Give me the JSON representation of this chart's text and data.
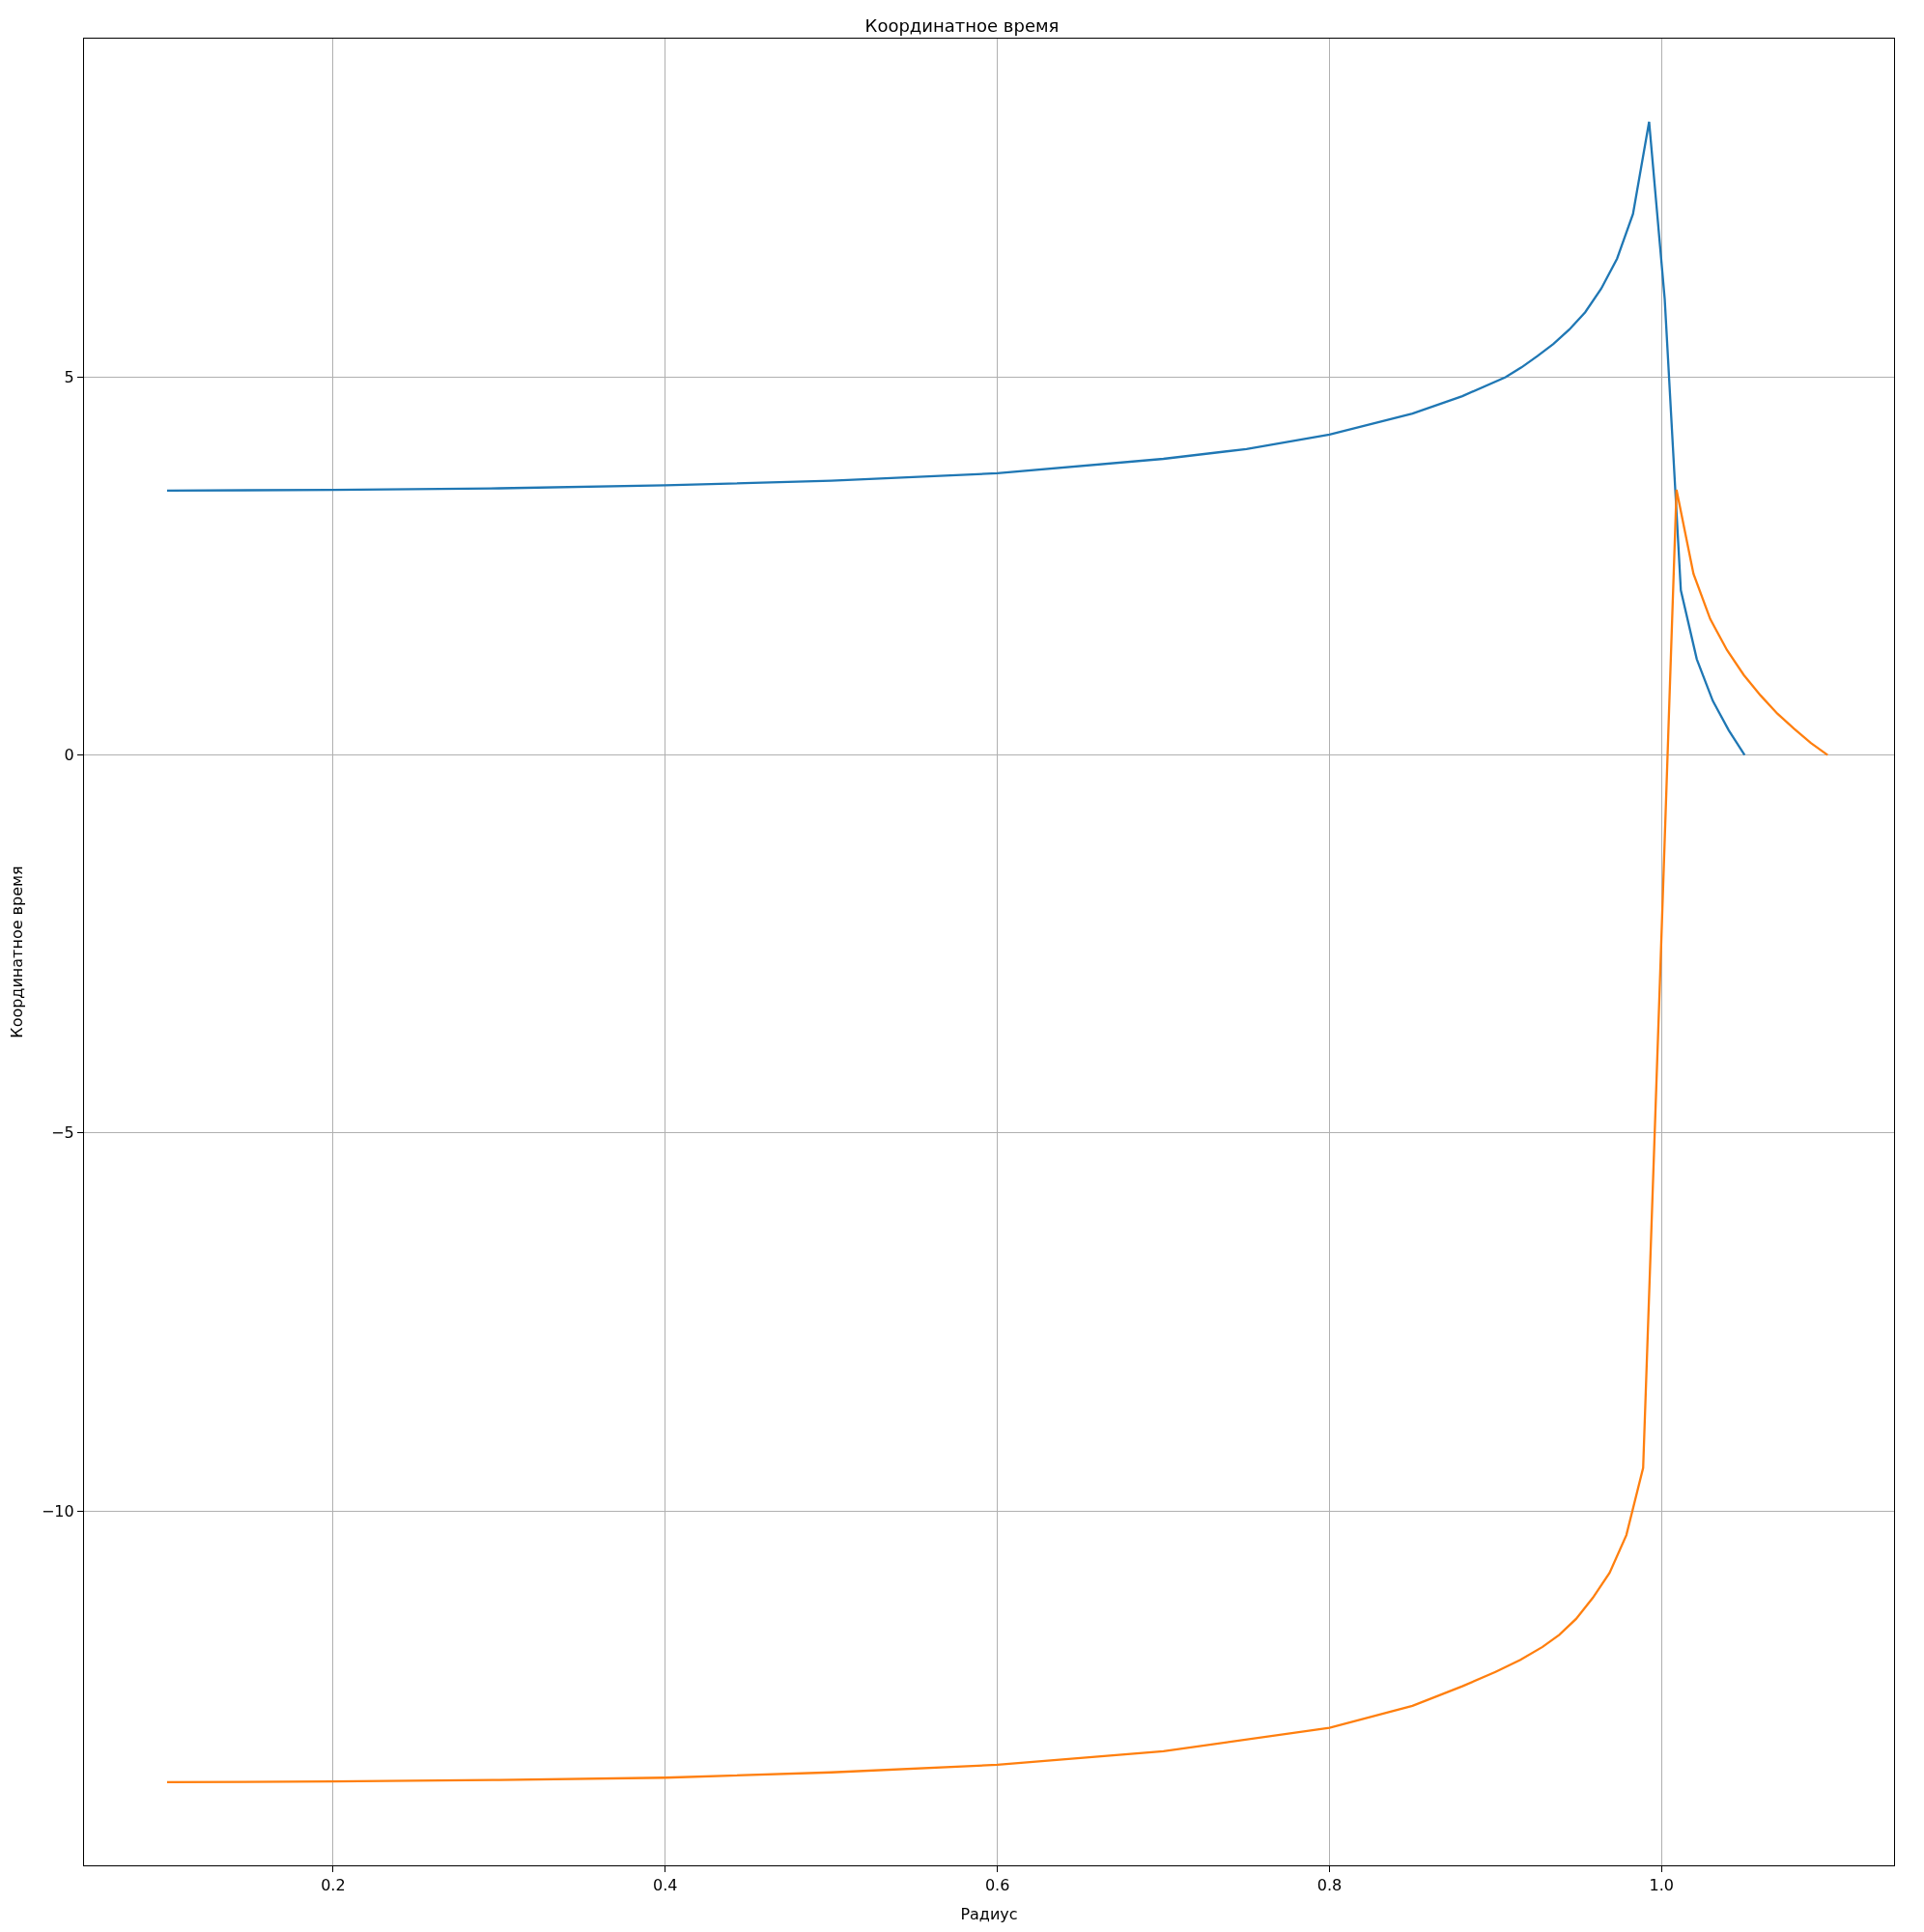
{
  "chart_data": {
    "type": "line",
    "title": "Координатное время",
    "xlabel": "Радиус",
    "ylabel": "Координатное время",
    "xlim": [
      0.05,
      1.14
    ],
    "ylim": [
      -14.69,
      9.48
    ],
    "xticks": [
      0.2,
      0.4,
      0.6,
      0.8,
      {
        "value": 1.0,
        "label": "1.0"
      }
    ],
    "yticks": [
      {
        "value": -10,
        "label": "−10"
      },
      {
        "value": -5,
        "label": "−5"
      },
      0,
      5
    ],
    "grid": true,
    "marker": "none",
    "line_style": "solid",
    "series": [
      {
        "color": "#1f77b4",
        "x": [
          0.1,
          0.2,
          0.3,
          0.4,
          0.5,
          0.6,
          0.7,
          0.75,
          0.8,
          0.85,
          0.88,
          0.906,
          0.9156,
          0.9252,
          0.9348,
          0.9444,
          0.954,
          0.9636,
          0.9732,
          0.9828,
          0.9925,
          1.0019,
          1.0116,
          1.0212,
          1.0308,
          1.0404,
          1.05
        ],
        "values": [
          3.5,
          3.51,
          3.53,
          3.57,
          3.63,
          3.73,
          3.92,
          4.05,
          4.24,
          4.52,
          4.75,
          5.0,
          5.13,
          5.28,
          5.44,
          5.63,
          5.86,
          6.17,
          6.57,
          7.16,
          8.38,
          6.03,
          2.18,
          1.27,
          0.72,
          0.33,
          0.0
        ]
      },
      {
        "color": "#ff7f0e",
        "x": [
          0.1,
          0.2,
          0.3,
          0.4,
          0.5,
          0.6,
          0.7,
          0.8,
          0.85,
          0.88,
          0.9,
          0.915,
          0.9283,
          0.9384,
          0.9485,
          0.9586,
          0.9687,
          0.9788,
          0.9889,
          0.999,
          1.009,
          1.0192,
          1.0293,
          1.0394,
          1.0495,
          1.0596,
          1.0697,
          1.0798,
          1.0899,
          1.1
        ],
        "values": [
          -13.59,
          -13.58,
          -13.56,
          -13.53,
          -13.46,
          -13.36,
          -13.18,
          -12.87,
          -12.58,
          -12.32,
          -12.13,
          -11.97,
          -11.8,
          -11.64,
          -11.43,
          -11.15,
          -10.82,
          -10.32,
          -9.43,
          -3.0,
          3.51,
          2.4,
          1.8,
          1.39,
          1.06,
          0.79,
          0.55,
          0.35,
          0.16,
          0.0
        ]
      }
    ]
  }
}
